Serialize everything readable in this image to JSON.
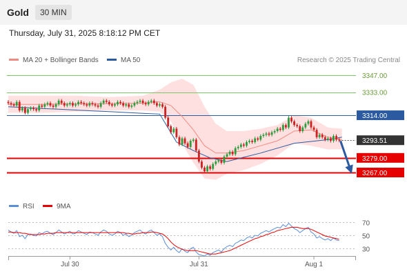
{
  "header": {
    "symbol": "Gold",
    "timeframe": "30 MIN"
  },
  "datetime": "Thursday, July 31, 2025 8:18:12 PM CET",
  "legend": {
    "ma20": "MA 20 + Bollinger Bands",
    "ma50": "MA 50",
    "credit": "Research © 2025 Trading Central"
  },
  "rsi_legend": {
    "rsi": "RSI",
    "ma9": "9MA"
  },
  "colors": {
    "ma20": "#f28b82",
    "ma50": "#2c5aa0",
    "band": "#fde0df",
    "resistance": "#7cc46a",
    "pivot": "#2c5aa0",
    "support": "#e60000",
    "candle_up": "#2e9b3e",
    "candle_down": "#cc2222",
    "rsi": "#5b8ed8",
    "rsi_ma": "#e60000",
    "arrow": "#2c5aa0",
    "last": "#333333"
  },
  "chart_data": [
    {
      "type": "candlestick",
      "title": "Gold",
      "ylim": [
        3250,
        3352
      ],
      "y_ticks": [
        "3347.00",
        "3333.00",
        "3314.00",
        "3293.51",
        "3279.00",
        "3267.00"
      ],
      "levels": [
        {
          "label": "3347.00",
          "value": 3347,
          "kind": "resistance"
        },
        {
          "label": "3333.00",
          "value": 3333,
          "kind": "resistance"
        },
        {
          "label": "3314.00",
          "value": 3314,
          "kind": "pivot"
        },
        {
          "label": "3279.00",
          "value": 3279,
          "kind": "support"
        },
        {
          "label": "3267.00",
          "value": 3267,
          "kind": "support"
        }
      ],
      "last_price": {
        "label": "3293.51",
        "value": 3293.51
      },
      "forecast_target": 3267,
      "x_labels": [
        {
          "label": "Jul 30",
          "index": 22
        },
        {
          "label": "Jul 31",
          "index": 68
        },
        {
          "label": "Aug 1",
          "index": 109
        }
      ],
      "n_slots": 125,
      "closes": [
        3324,
        3323,
        3322,
        3325,
        3318,
        3320,
        3316,
        3319,
        3320,
        3319,
        3318,
        3322,
        3321,
        3323,
        3324,
        3322,
        3321,
        3323,
        3326,
        3324,
        3322,
        3323,
        3324,
        3322,
        3323,
        3325,
        3324,
        3323,
        3322,
        3324,
        3323,
        3322,
        3321,
        3324,
        3326,
        3325,
        3323,
        3322,
        3323,
        3325,
        3324,
        3322,
        3323,
        3321,
        3322,
        3324,
        3325,
        3326,
        3324,
        3323,
        3325,
        3326,
        3324,
        3322,
        3323,
        3321,
        3312,
        3305,
        3300,
        3303,
        3296,
        3290,
        3295,
        3291,
        3288,
        3293,
        3294,
        3285,
        3276,
        3271,
        3268,
        3272,
        3270,
        3274,
        3276,
        3277,
        3275,
        3280,
        3282,
        3284,
        3282,
        3287,
        3288,
        3290,
        3289,
        3292,
        3293,
        3292,
        3295,
        3294,
        3297,
        3298,
        3299,
        3298,
        3300,
        3301,
        3303,
        3302,
        3306,
        3304,
        3312,
        3309,
        3306,
        3305,
        3301,
        3304,
        3307,
        3309,
        3304,
        3302,
        3296,
        3298,
        3296,
        3294,
        3295,
        3293,
        3297,
        3294,
        3293.51
      ],
      "ma50": [
        3321,
        3320.3,
        3319.6,
        3319,
        3318.3,
        3317.6,
        3317,
        3316.3,
        3315.6,
        3315,
        3292,
        3285,
        3279,
        3276,
        3279.5,
        3283,
        3287,
        3291,
        3292.5,
        3294,
        3296
      ],
      "ma50_index": [
        0,
        6,
        12,
        18,
        24,
        30,
        36,
        42,
        48,
        54,
        60,
        66,
        72,
        78,
        84,
        90,
        96,
        102,
        108,
        114,
        119
      ],
      "bb_index": [
        0,
        12,
        24,
        36,
        48,
        54,
        58,
        62,
        66,
        70,
        74,
        78,
        84,
        90,
        96,
        102,
        108,
        114,
        119
      ],
      "bb_upper": [
        3330,
        3330,
        3330,
        3329,
        3330,
        3335,
        3341,
        3344,
        3339,
        3321,
        3307,
        3301,
        3301,
        3303,
        3306,
        3314,
        3312,
        3304,
        3303
      ],
      "bb_lower": [
        3316,
        3316,
        3317,
        3318,
        3318,
        3317,
        3309,
        3291,
        3275,
        3262,
        3261,
        3266,
        3269,
        3274,
        3281,
        3291,
        3289,
        3286,
        3286
      ],
      "ma20": [
        3323,
        3323,
        3323.5,
        3323.5,
        3324,
        3325,
        3322,
        3313,
        3302,
        3289,
        3283,
        3283,
        3285,
        3289,
        3293,
        3301,
        3302,
        3296,
        3294
      ]
    },
    {
      "type": "line",
      "title": "RSI",
      "ylim": [
        20,
        80
      ],
      "y_ticks": [
        70,
        50,
        30
      ],
      "series": [
        {
          "name": "RSI",
          "values": [
            58,
            55,
            53,
            57,
            48,
            50,
            45,
            51,
            52,
            50,
            49,
            54,
            52,
            55,
            56,
            53,
            51,
            54,
            58,
            55,
            52,
            54,
            56,
            52,
            53,
            57,
            55,
            53,
            51,
            55,
            54,
            52,
            50,
            55,
            58,
            56,
            52,
            50,
            52,
            56,
            54,
            50,
            52,
            48,
            50,
            54,
            56,
            58,
            54,
            52,
            56,
            58,
            54,
            50,
            52,
            48,
            38,
            32,
            28,
            32,
            27,
            24,
            30,
            26,
            24,
            30,
            32,
            25,
            21,
            20,
            19,
            22,
            20,
            24,
            26,
            28,
            25,
            30,
            33,
            35,
            33,
            38,
            40,
            43,
            42,
            46,
            48,
            46,
            50,
            49,
            53,
            55,
            57,
            55,
            58,
            60,
            62,
            61,
            66,
            63,
            68,
            64,
            60,
            58,
            54,
            57,
            60,
            62,
            55,
            52,
            46,
            48,
            45,
            43,
            45,
            42,
            46,
            43,
            42
          ]
        },
        {
          "name": "9MA",
          "values": [
            55,
            55,
            54,
            54,
            54,
            53,
            53,
            52,
            51,
            51,
            51,
            51,
            52,
            52,
            53,
            53,
            53,
            54,
            54,
            54,
            54,
            54,
            54,
            54,
            54,
            54,
            54,
            54,
            54,
            54,
            54,
            54,
            54,
            54,
            54,
            54,
            54,
            54,
            54,
            54,
            54,
            54,
            53,
            53,
            52,
            52,
            53,
            53,
            54,
            54,
            54,
            55,
            55,
            54,
            53,
            52,
            49,
            45,
            40,
            36,
            33,
            31,
            29,
            28,
            27,
            27,
            27,
            27,
            26,
            25,
            24,
            23,
            22,
            22,
            22,
            23,
            24,
            25,
            26,
            27,
            29,
            31,
            33,
            35,
            37,
            39,
            41,
            43,
            45,
            46,
            48,
            49,
            51,
            52,
            54,
            55,
            57,
            58,
            59,
            60,
            61,
            62,
            62,
            62,
            61,
            60,
            60,
            60,
            59,
            57,
            55,
            53,
            51,
            49,
            48,
            47,
            46,
            45,
            44
          ]
        }
      ]
    }
  ]
}
